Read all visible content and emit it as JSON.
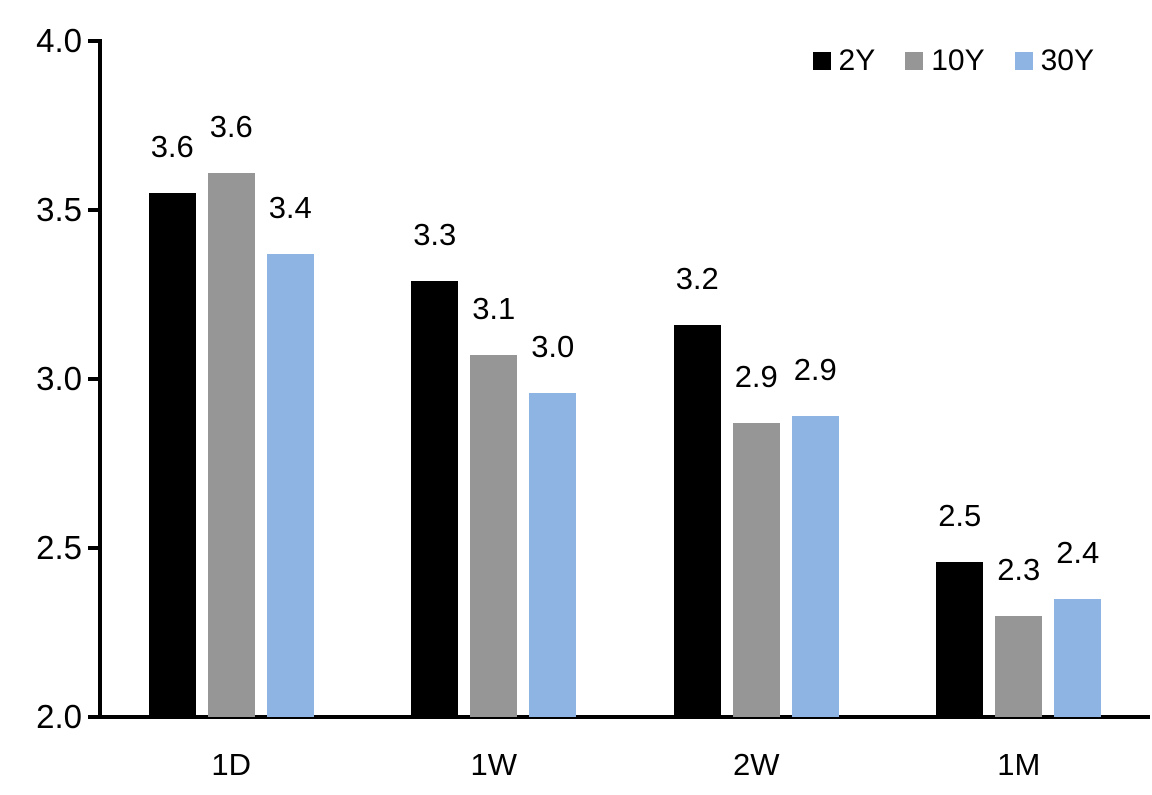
{
  "chart_data": {
    "type": "bar",
    "title": "",
    "xlabel": "",
    "ylabel": "",
    "categories": [
      "1D",
      "1W",
      "2W",
      "1M"
    ],
    "series": [
      {
        "name": "2Y",
        "color": "#000000",
        "values": [
          3.55,
          3.29,
          3.16,
          2.46
        ],
        "labels": [
          "3.6",
          "3.3",
          "3.2",
          "2.5"
        ]
      },
      {
        "name": "10Y",
        "color": "#969696",
        "values": [
          3.61,
          3.07,
          2.87,
          2.3
        ],
        "labels": [
          "3.6",
          "3.1",
          "2.9",
          "2.3"
        ]
      },
      {
        "name": "30Y",
        "color": "#8EB4E3",
        "values": [
          3.37,
          2.96,
          2.89,
          2.35
        ],
        "labels": [
          "3.4",
          "3.0",
          "2.9",
          "2.4"
        ]
      }
    ],
    "ylim": [
      2.0,
      4.0
    ],
    "y_ticks": [
      "4.0",
      "3.5",
      "3.0",
      "2.5",
      "2.0"
    ],
    "y_tick_values": [
      4.0,
      3.5,
      3.0,
      2.5,
      2.0
    ],
    "grid": false,
    "legend_position": "top-right",
    "axis_color": "#000000",
    "background_color": "#ffffff"
  }
}
